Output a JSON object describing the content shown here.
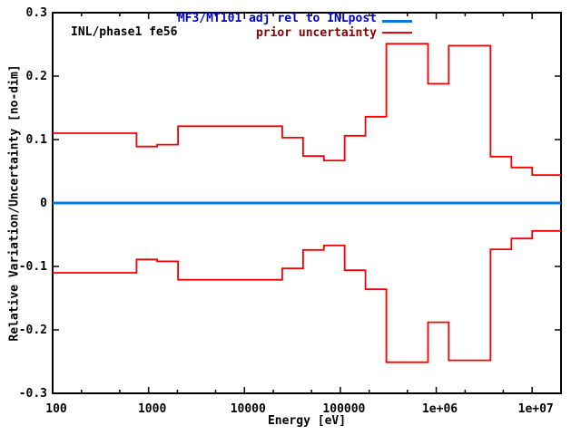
{
  "corner_label": "INL/phase1 fe56",
  "legend": {
    "entries": [
      {
        "label": "MF3/MT101 adj rel to INLpost",
        "text_color": "#0000cc",
        "line_color": "#0878e0",
        "line_width": 3
      },
      {
        "label": "prior uncertainty",
        "text_color": "#8b0000",
        "line_color": "#f80000",
        "line_width": 2
      }
    ]
  },
  "chart_data": {
    "type": "line",
    "title": "",
    "xlabel": "Energy [eV]",
    "ylabel": "Relative Variation/Uncertainty [no-dim]",
    "x_scale": "log",
    "xlim": [
      100,
      20000000
    ],
    "ylim": [
      -0.3,
      0.3
    ],
    "grid": false,
    "legend_position": "top-right-inside",
    "axis_color": "#000000",
    "x_ticks": [
      {
        "value": 100,
        "label": "100"
      },
      {
        "value": 1000,
        "label": "1000"
      },
      {
        "value": 10000,
        "label": "10000"
      },
      {
        "value": 100000,
        "label": "100000"
      },
      {
        "value": 1000000,
        "label": "1e+06"
      },
      {
        "value": 10000000,
        "label": "1e+07"
      }
    ],
    "x_minor_tick_multipliers": [
      2,
      5
    ],
    "y_ticks": [
      {
        "value": 0.3,
        "label": "0.3"
      },
      {
        "value": 0.2,
        "label": "0.2"
      },
      {
        "value": 0.1,
        "label": "0.1"
      },
      {
        "value": 0,
        "label": "0"
      },
      {
        "value": -0.1,
        "label": "-0.1"
      },
      {
        "value": -0.2,
        "label": "-0.2"
      },
      {
        "value": -0.3,
        "label": "-0.3"
      }
    ],
    "series": [
      {
        "name": "MF3/MT101 adj rel to INLpost",
        "style": "hline",
        "value": 0,
        "color": "#0878e0",
        "width": 3
      },
      {
        "name": "prior uncertainty",
        "style": "step-groups",
        "mirrored_about_zero": true,
        "color": "#f80000",
        "width": 1.8,
        "groups": [
          [
            100,
            750,
            0.11
          ],
          [
            750,
            1230,
            0.089
          ],
          [
            1230,
            2030,
            0.092
          ],
          [
            2030,
            24800,
            0.121
          ],
          [
            24800,
            40900,
            0.103
          ],
          [
            40900,
            67400,
            0.074
          ],
          [
            67400,
            111000,
            0.067
          ],
          [
            111000,
            183000,
            0.106
          ],
          [
            183000,
            302000,
            0.136
          ],
          [
            302000,
            821000,
            0.251
          ],
          [
            821000,
            1350000,
            0.188
          ],
          [
            1350000,
            3680000,
            0.248
          ],
          [
            3680000,
            6070000,
            0.073
          ],
          [
            6070000,
            10000000,
            0.056
          ],
          [
            10000000,
            20000000,
            0.044
          ]
        ]
      }
    ]
  }
}
